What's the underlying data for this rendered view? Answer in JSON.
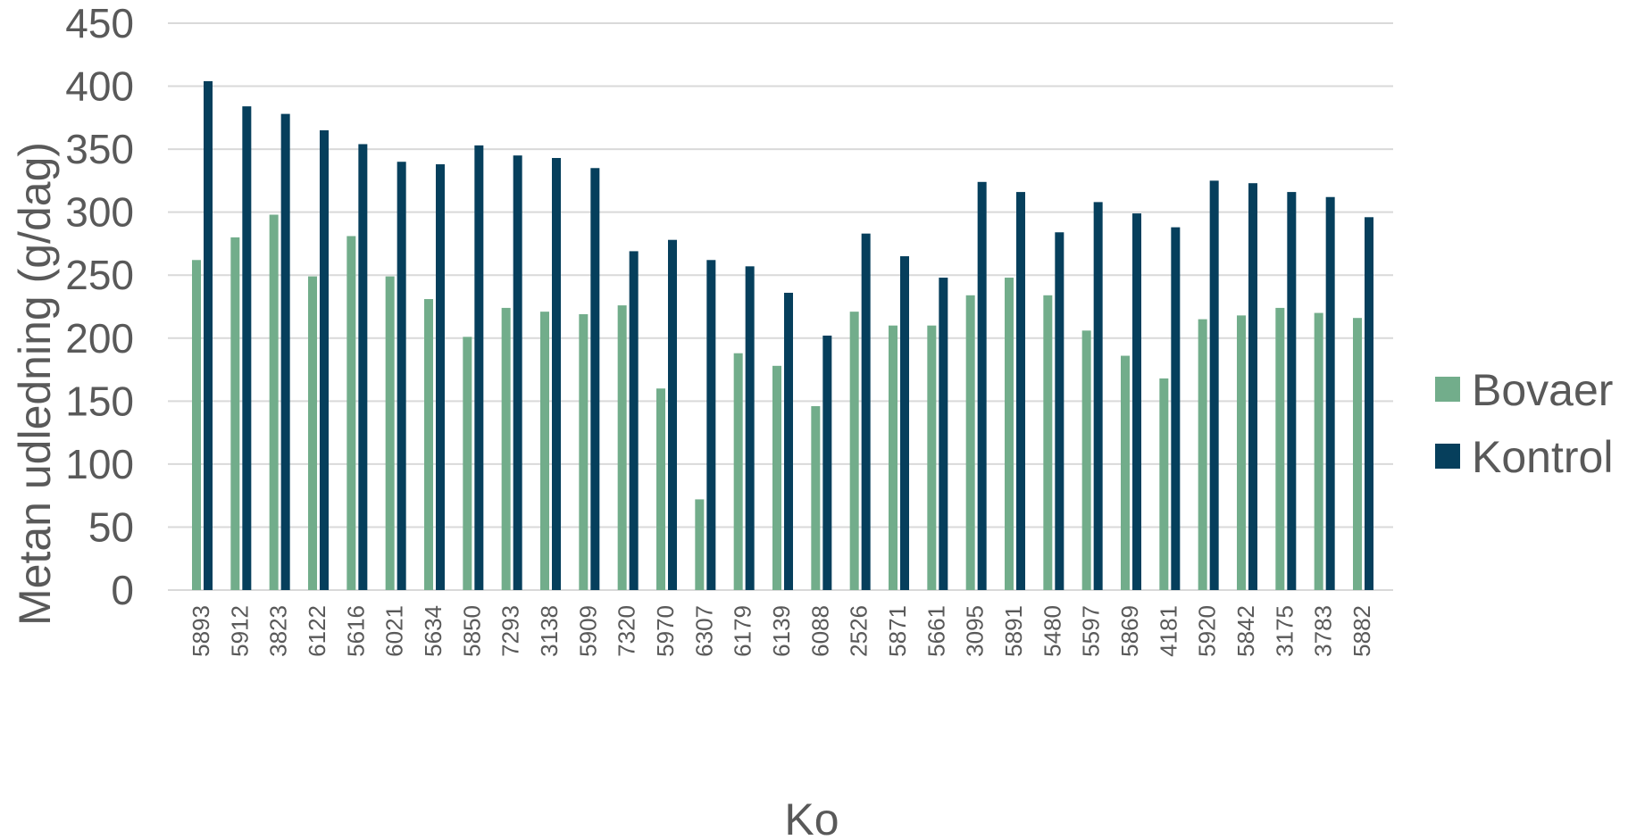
{
  "chart_data": {
    "type": "bar",
    "title": "",
    "xlabel": "Ko",
    "ylabel": "Metan udledning (g/dag)",
    "ylim": [
      0,
      450
    ],
    "yticks": [
      0,
      50,
      100,
      150,
      200,
      250,
      300,
      350,
      400,
      450
    ],
    "grid": true,
    "legend_position": "right",
    "categories": [
      "5893",
      "5912",
      "3823",
      "6122",
      "5616",
      "6021",
      "5634",
      "5850",
      "7293",
      "3138",
      "5909",
      "7320",
      "5970",
      "6307",
      "6179",
      "6139",
      "6088",
      "2526",
      "5871",
      "5661",
      "3095",
      "5891",
      "5480",
      "5597",
      "5869",
      "4181",
      "5920",
      "5842",
      "3175",
      "3783",
      "5882"
    ],
    "series": [
      {
        "name": "Bovaer",
        "color": "#72ad8b",
        "values": [
          262,
          280,
          298,
          249,
          281,
          249,
          231,
          201,
          224,
          221,
          219,
          226,
          160,
          72,
          188,
          178,
          146,
          221,
          210,
          210,
          234,
          248,
          234,
          206,
          186,
          168,
          215,
          218,
          224,
          220,
          216
        ]
      },
      {
        "name": "Kontrol",
        "color": "#063f5c",
        "values": [
          404,
          384,
          378,
          365,
          354,
          340,
          338,
          353,
          345,
          343,
          335,
          269,
          278,
          262,
          257,
          236,
          202,
          283,
          265,
          248,
          324,
          316,
          284,
          308,
          299,
          288,
          325,
          323,
          316,
          312,
          296
        ]
      }
    ]
  }
}
